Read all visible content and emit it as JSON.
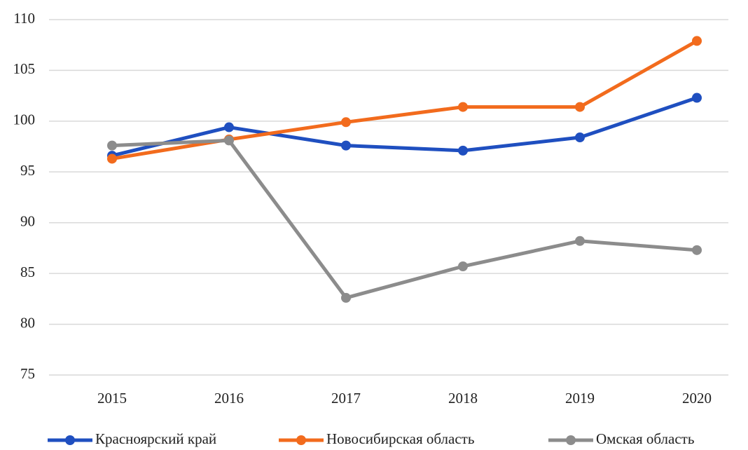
{
  "chart_data": {
    "type": "line",
    "categories": [
      "2015",
      "2016",
      "2017",
      "2018",
      "2019",
      "2020"
    ],
    "series": [
      {
        "name": "Красноярский край",
        "color": "#1f4fc0",
        "values": [
          96.6,
          99.4,
          97.6,
          97.1,
          98.4,
          102.3
        ]
      },
      {
        "name": "Новосибирская область",
        "color": "#f26b1d",
        "values": [
          96.3,
          98.2,
          99.9,
          101.4,
          101.4,
          107.9
        ]
      },
      {
        "name": "Омская область",
        "color": "#8c8c8c",
        "values": [
          97.6,
          98.1,
          82.6,
          85.7,
          88.2,
          87.3
        ]
      }
    ],
    "ylim": [
      75,
      110
    ],
    "yticks": [
      75,
      80,
      85,
      90,
      95,
      100,
      105,
      110
    ],
    "grid": true,
    "legend": "bottom"
  }
}
